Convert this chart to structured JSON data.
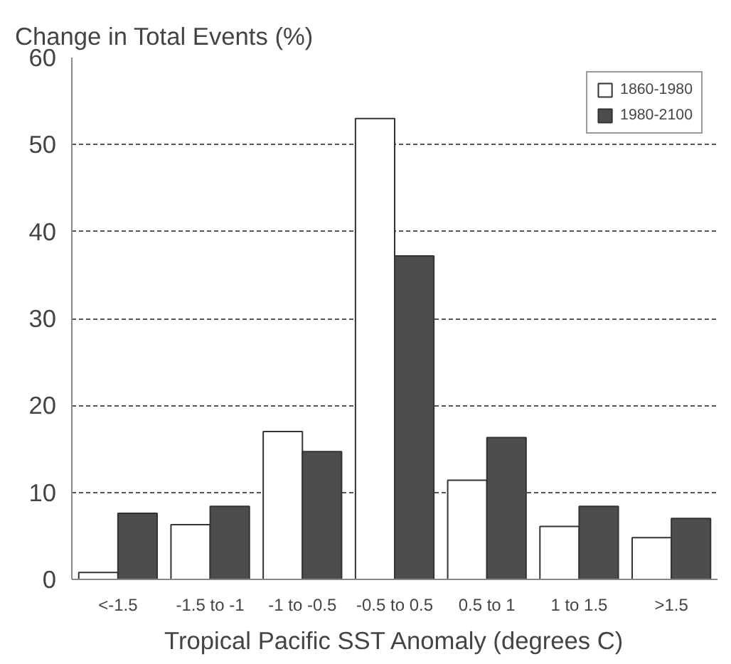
{
  "chart_data": {
    "type": "bar",
    "title": "Change in Total Events (%)",
    "xlabel": "Tropical Pacific SST Anomaly (degrees C)",
    "categories": [
      "<-1.5",
      "-1.5 to -1",
      "-1 to -0.5",
      "-0.5 to 0.5",
      "0.5 to 1",
      "1 to 1.5",
      ">1.5"
    ],
    "series": [
      {
        "name": "1860-1980",
        "color": "#ffffff",
        "values": [
          0.8,
          6.3,
          17.0,
          53,
          11.4,
          6.1,
          4.8
        ]
      },
      {
        "name": "1980-2100",
        "color": "#4d4d4d",
        "values": [
          7.6,
          8.4,
          14.7,
          37.2,
          16.3,
          8.4,
          7.0
        ]
      }
    ],
    "ylim": [
      0,
      60
    ],
    "yticks": [
      0,
      10,
      20,
      30,
      40,
      50,
      60
    ],
    "grid": "y",
    "legend": "top right"
  }
}
